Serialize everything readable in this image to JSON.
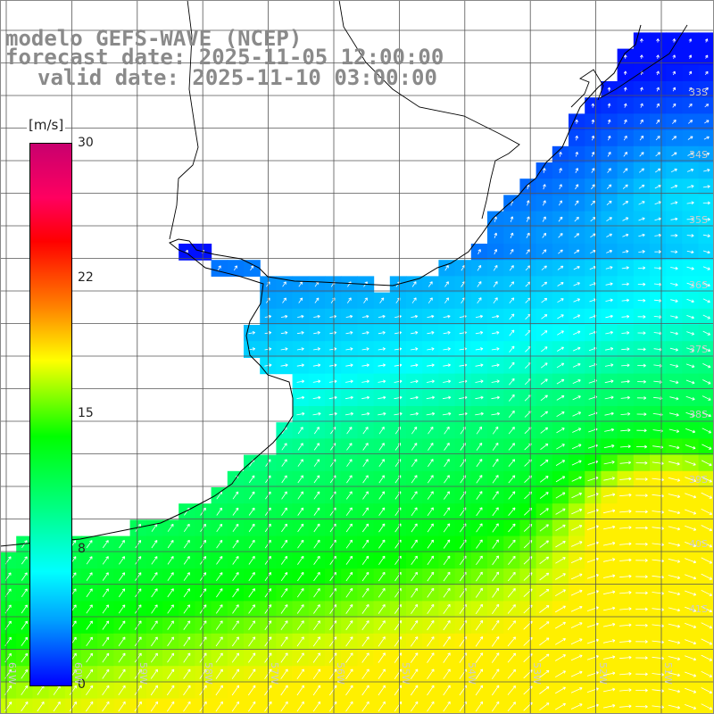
{
  "title": {
    "line1": "modelo GEFS-WAVE (NCEP)",
    "line2": "forecast date: 2025-11-05 12:00:00",
    "line3": "valid date: 2025-11-10 03:00:00"
  },
  "legend": {
    "unit": "[m/s]",
    "ticks": [
      {
        "label": "30",
        "value": 30
      },
      {
        "label": "22",
        "value": 22
      },
      {
        "label": "15",
        "value": 15
      },
      {
        "label": "8",
        "value": 8
      },
      {
        "label": "0",
        "value": 0
      }
    ],
    "range": [
      0,
      30
    ]
  },
  "lat_labels": [
    "33S",
    "34S",
    "35S",
    "36S",
    "37S",
    "38S",
    "39S",
    "40S",
    "41S"
  ],
  "lon_labels": [
    "61W",
    "60W",
    "59W",
    "58W",
    "57W",
    "56W",
    "55W",
    "54W",
    "53W",
    "52W",
    "51W"
  ],
  "colors": {
    "land": "#ffffff",
    "coast": "#000000",
    "grid": "#555555",
    "arrows": "#ffffff"
  }
}
